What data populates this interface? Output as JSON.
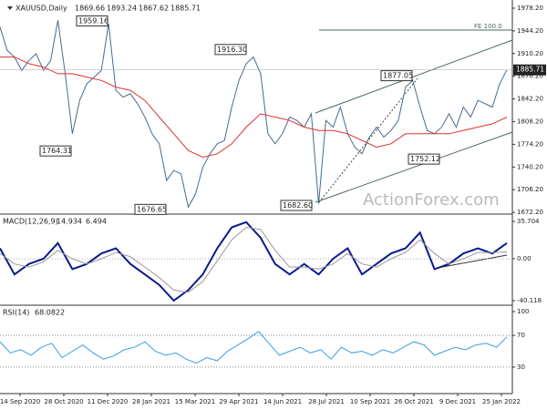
{
  "chart_data": [
    {
      "type": "line",
      "symbol": "XAUUSD,Daily",
      "ohlc": [
        1869.66,
        1893.24,
        1867.62,
        1885.71
      ],
      "ylim": [
        1671,
        1990.5
      ],
      "yticks": [
        {
          "value": 1978.2,
          "label": "1978.20"
        },
        {
          "value": 1944.2,
          "label": "1944.20"
        },
        {
          "value": 1910.2,
          "label": "1910.20"
        },
        {
          "value": 1876.2,
          "label": "1876.20"
        },
        {
          "value": 1842.2,
          "label": "1842.20"
        },
        {
          "value": 1808.2,
          "label": "1808.20"
        },
        {
          "value": 1774.2,
          "label": "1774.20"
        },
        {
          "value": 1740.2,
          "label": "1740.20"
        },
        {
          "value": 1706.2,
          "label": "1706.20"
        },
        {
          "value": 1672.2,
          "label": "1672.20"
        }
      ],
      "last_price": 1885.71,
      "annotations": [
        1959.16,
        1764.31,
        1676.65,
        {
          "value": 1916.3,
          "label": "1916.30"
        },
        {
          "value": 1682.6,
          "label": "1682.60"
        },
        1877.05,
        1752.12
      ],
      "fe_label": "FE 100.0",
      "watermark": "ActionForex.com",
      "series": [
        {
          "color": "#4a6a8a",
          "values": [
            1950,
            1915,
            1905,
            1885,
            1900,
            1910,
            1885,
            1900,
            1960,
            1880,
            1790,
            1840,
            1865,
            1875,
            1885,
            1955,
            1855,
            1845,
            1850,
            1835,
            1815,
            1790,
            1775,
            1720,
            1735,
            1730,
            1680,
            1700,
            1740,
            1760,
            1775,
            1780,
            1830,
            1870,
            1895,
            1905,
            1880,
            1790,
            1775,
            1790,
            1815,
            1810,
            1800,
            1820,
            1685,
            1810,
            1800,
            1830,
            1790,
            1770,
            1760,
            1785,
            1800,
            1785,
            1795,
            1810,
            1860,
            1870,
            1830,
            1795,
            1790,
            1800,
            1820,
            1800,
            1830,
            1815,
            1840,
            1835,
            1830,
            1865,
            1885.71
          ]
        },
        {
          "color": "#e03030",
          "values": [
            1905,
            1905,
            1895,
            1890,
            1880,
            1880,
            1875,
            1870,
            1860,
            1855,
            1840,
            1815,
            1790,
            1765,
            1755,
            1760,
            1775,
            1800,
            1820,
            1815,
            1810,
            1800,
            1795,
            1795,
            1790,
            1780,
            1770,
            1775,
            1790,
            1790,
            1790,
            1790,
            1795,
            1800,
            1805,
            1815
          ]
        }
      ]
    },
    {
      "type": "line",
      "name": "MACD(12,26,9)",
      "readings": [
        14.934,
        6.494
      ],
      "ylim": [
        -43.6,
        41.8
      ],
      "yticks": [
        35.704,
        {
          "value": 0,
          "label": "0.00"
        },
        -40.118
      ],
      "series": [
        {
          "color": "#0a1a8a",
          "values": [
            10,
            -15,
            -5,
            0,
            15,
            -10,
            -5,
            5,
            10,
            -5,
            -15,
            -25,
            -40,
            -30,
            -15,
            10,
            30,
            35,
            20,
            -5,
            -15,
            -5,
            -15,
            0,
            10,
            -15,
            -5,
            5,
            10,
            25,
            -10,
            -5,
            5,
            10,
            5,
            14.934
          ]
        },
        {
          "color": "#999999",
          "values": [
            5,
            -5,
            -8,
            -3,
            8,
            0,
            -5,
            0,
            6,
            2,
            -8,
            -18,
            -30,
            -32,
            -22,
            -2,
            18,
            30,
            28,
            8,
            -8,
            -8,
            -10,
            -5,
            5,
            -5,
            -8,
            0,
            6,
            18,
            5,
            -5,
            0,
            6,
            6,
            6.494
          ]
        }
      ]
    },
    {
      "type": "line",
      "name": "RSI(14)",
      "reading": 68.0822,
      "ylim": [
        -3.4,
        106.9
      ],
      "yticks": [
        100,
        70,
        30
      ],
      "levels": [
        70,
        30
      ],
      "series": [
        {
          "color": "#3a9ee0",
          "values": [
            62,
            48,
            52,
            45,
            55,
            60,
            42,
            50,
            58,
            48,
            40,
            44,
            52,
            55,
            62,
            50,
            45,
            48,
            40,
            35,
            42,
            38,
            50,
            58,
            66,
            75,
            60,
            45,
            50,
            55,
            48,
            52,
            40,
            55,
            48,
            50,
            45,
            52,
            48,
            55,
            62,
            58,
            45,
            50,
            55,
            52,
            58,
            60,
            55,
            68.0822
          ]
        }
      ]
    }
  ],
  "x_axis": {
    "labels": [
      "14 Sep 2020",
      "28 Oct 2020",
      "11 Dec 2020",
      "28 Jan 2021",
      "15 Mar 2021",
      "29 Apr 2021",
      "14 Jun 2021",
      "28 Jul 2021",
      "10 Sep 2021",
      "26 Oct 2021",
      "9 Dec 2021",
      "25 Jan 2022"
    ]
  }
}
